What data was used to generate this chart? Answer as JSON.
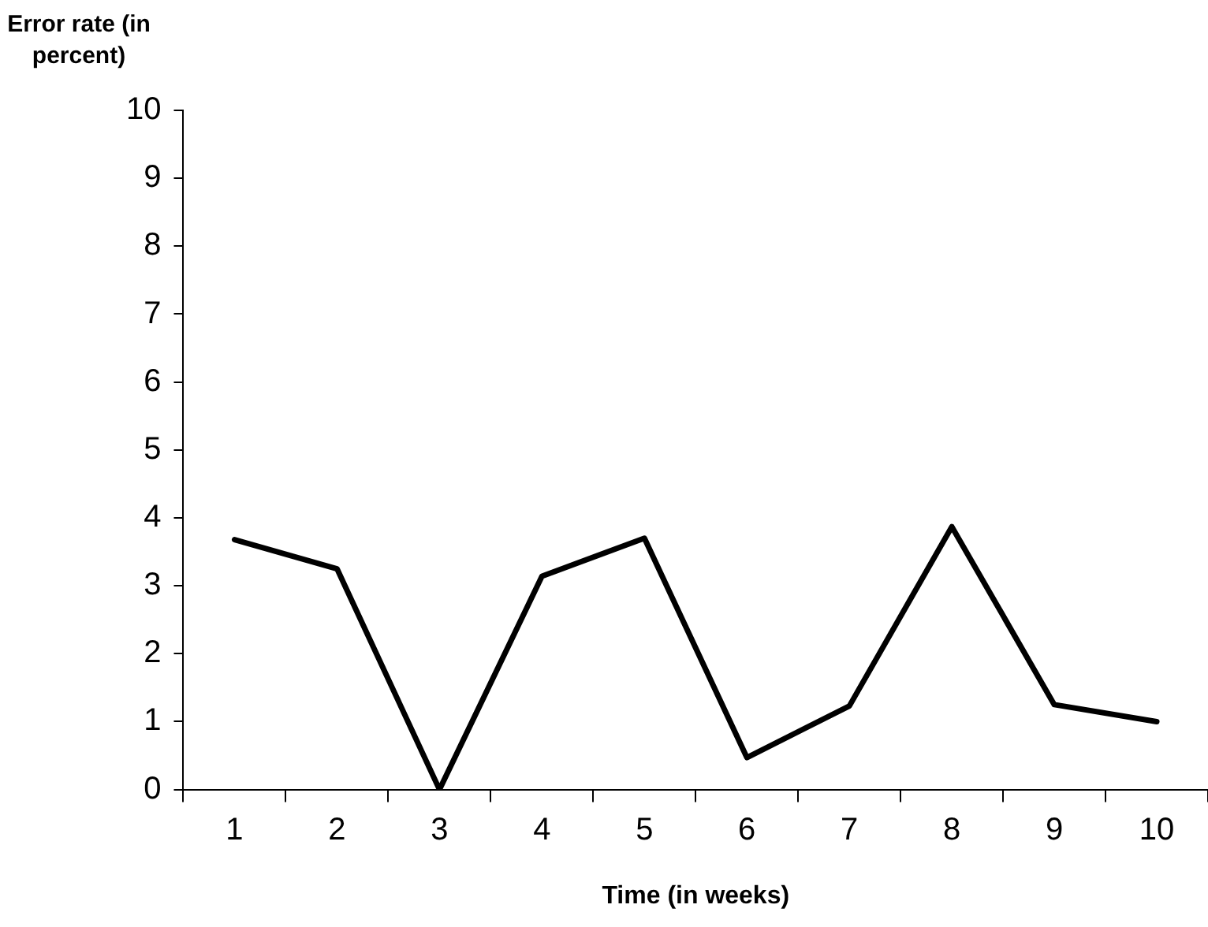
{
  "chart_data": {
    "type": "line",
    "xlabel": "Time (in weeks)",
    "ylabel": "Error rate (in percent)",
    "categories": [
      "1",
      "2",
      "3",
      "4",
      "5",
      "6",
      "7",
      "8",
      "9",
      "10"
    ],
    "values": [
      3.68,
      3.25,
      0,
      3.14,
      3.7,
      0.47,
      1.23,
      3.87,
      1.25,
      1.0
    ],
    "color": "#000000",
    "ylim": [
      0,
      10
    ],
    "yticks": [
      0,
      1,
      2,
      3,
      4,
      5,
      6,
      7,
      8,
      9,
      10
    ],
    "grid": false,
    "legend": false,
    "marker": "none",
    "line_style": "solid"
  }
}
